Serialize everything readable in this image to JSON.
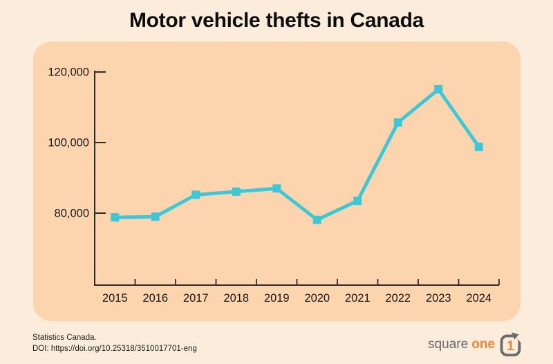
{
  "page": {
    "title": "Motor vehicle thefts in Canada"
  },
  "colors": {
    "page_bg": "#fcecdc",
    "panel_bg": "#fcd5ae",
    "accent_cyan": "#3ec7d8",
    "axis": "#2a2a2a",
    "logo_gray": "#6b6b6e",
    "logo_orange": "#ee8430"
  },
  "chart_data": {
    "type": "line",
    "title": "Motor vehicle thefts in Canada",
    "categories": [
      "2015",
      "2016",
      "2017",
      "2018",
      "2019",
      "2020",
      "2021",
      "2022",
      "2023",
      "2024"
    ],
    "values": [
      78800,
      79000,
      85200,
      86100,
      87000,
      78100,
      83500,
      105700,
      115100,
      98800
    ],
    "ylim": [
      59600,
      120400
    ],
    "yticks": [
      {
        "value": 80000,
        "label": "80,000"
      },
      {
        "value": 100000,
        "label": "100,000"
      },
      {
        "value": 120000,
        "label": "120,000"
      }
    ],
    "xlabel": "",
    "ylabel": "",
    "grid": false,
    "legend": false,
    "marker": "square",
    "line_color": "#3ec7d8",
    "axis_color": "#2a2a2a"
  },
  "footer": {
    "source_line1": "Statistics Canada.",
    "source_line2": "DOI: https://doi.org/10.25318/3510017701-eng",
    "logo": {
      "square": "square",
      "one": "one",
      "digit": "1"
    }
  }
}
